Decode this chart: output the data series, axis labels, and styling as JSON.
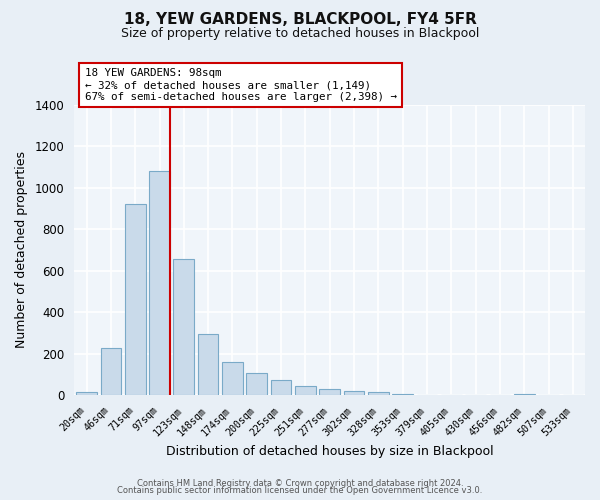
{
  "title": "18, YEW GARDENS, BLACKPOOL, FY4 5FR",
  "subtitle": "Size of property relative to detached houses in Blackpool",
  "xlabel": "Distribution of detached houses by size in Blackpool",
  "ylabel": "Number of detached properties",
  "bar_labels": [
    "20sqm",
    "46sqm",
    "71sqm",
    "97sqm",
    "123sqm",
    "148sqm",
    "174sqm",
    "200sqm",
    "225sqm",
    "251sqm",
    "277sqm",
    "302sqm",
    "328sqm",
    "353sqm",
    "379sqm",
    "405sqm",
    "430sqm",
    "456sqm",
    "482sqm",
    "507sqm",
    "533sqm"
  ],
  "bar_values": [
    15,
    230,
    920,
    1080,
    655,
    295,
    160,
    108,
    72,
    45,
    28,
    20,
    15,
    5,
    0,
    0,
    0,
    0,
    5,
    0,
    0
  ],
  "bar_color": "#c9daea",
  "bar_edge_color": "#7aaac8",
  "property_line_color": "#cc0000",
  "annotation_title": "18 YEW GARDENS: 98sqm",
  "annotation_line1": "← 32% of detached houses are smaller (1,149)",
  "annotation_line2": "67% of semi-detached houses are larger (2,398) →",
  "annotation_box_facecolor": "#ffffff",
  "annotation_box_edgecolor": "#cc0000",
  "ylim": [
    0,
    1400
  ],
  "yticks": [
    0,
    200,
    400,
    600,
    800,
    1000,
    1200,
    1400
  ],
  "footer1": "Contains HM Land Registry data © Crown copyright and database right 2024.",
  "footer2": "Contains public sector information licensed under the Open Government Licence v3.0.",
  "bg_color": "#e8eff6",
  "plot_bg_color": "#f0f5fa"
}
